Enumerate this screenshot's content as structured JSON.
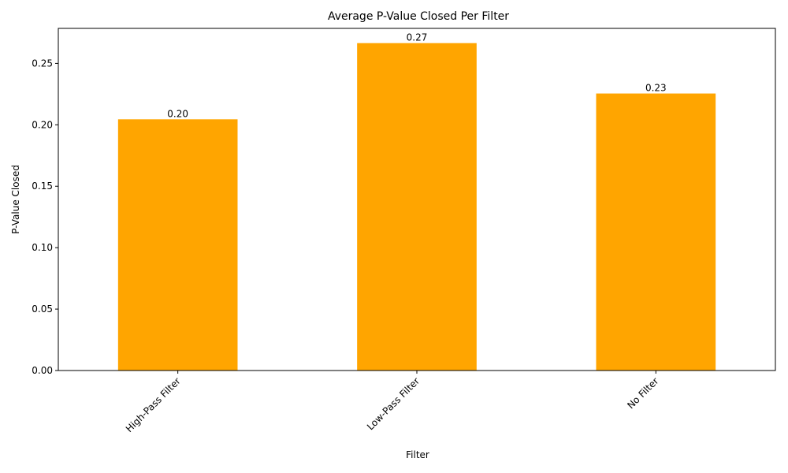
{
  "chart_data": {
    "type": "bar",
    "title": "Average P-Value Closed Per Filter",
    "xlabel": "Filter",
    "ylabel": "P-Value Closed",
    "categories": [
      "High-Pass Filter",
      "Low-Pass Filter",
      "No Filter"
    ],
    "values": [
      0.2045,
      0.2665,
      0.2255
    ],
    "data_labels": [
      "0.20",
      "0.27",
      "0.23"
    ],
    "ylim": [
      0,
      0.2785
    ],
    "yticks": [
      0.0,
      0.05,
      0.1,
      0.15,
      0.2,
      0.25
    ],
    "ytick_labels": [
      "0.00",
      "0.05",
      "0.10",
      "0.15",
      "0.20",
      "0.25"
    ],
    "bar_color": "#ffa500",
    "grid": false,
    "legend": "none"
  }
}
